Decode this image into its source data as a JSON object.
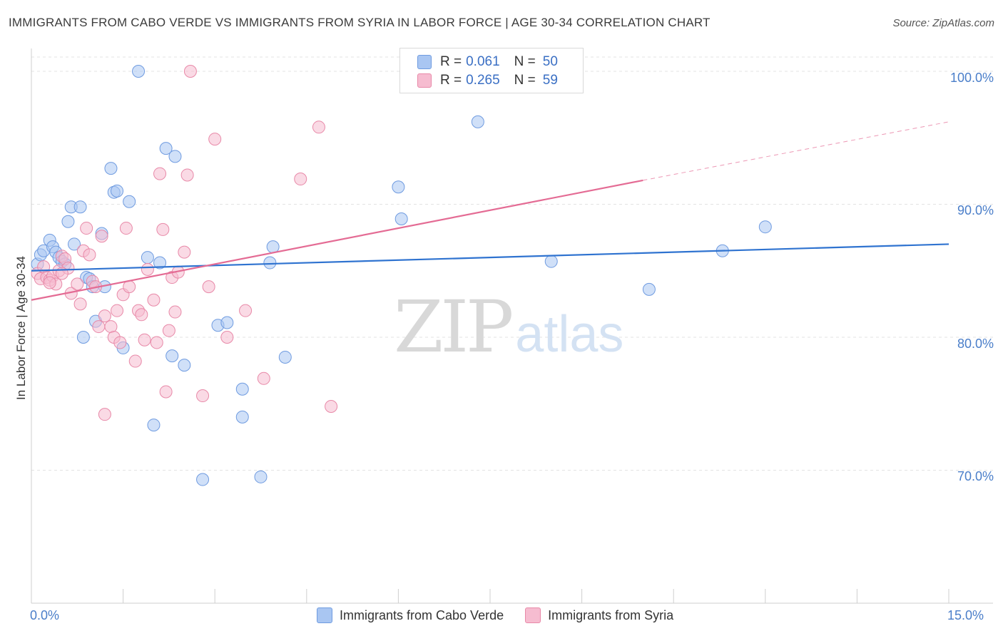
{
  "title": "IMMIGRANTS FROM CABO VERDE VS IMMIGRANTS FROM SYRIA IN LABOR FORCE | AGE 30-34 CORRELATION CHART",
  "source": "Source: ZipAtlas.com",
  "watermark": {
    "part1": "ZIP",
    "part2": "atlas"
  },
  "legend": {
    "rows": [
      {
        "r_label": "R = ",
        "r_value": "0.061",
        "n_label": "N = ",
        "n_value": "50",
        "color": "#a9c6f2",
        "border": "#6f9be0"
      },
      {
        "r_label": "R = ",
        "r_value": "0.265",
        "n_label": "N = ",
        "n_value": "59",
        "color": "#f6bcd0",
        "border": "#e889a8"
      }
    ]
  },
  "bottom_legend": {
    "items": [
      {
        "label": "Immigrants from Cabo Verde",
        "color": "#a9c6f2",
        "border": "#6f9be0"
      },
      {
        "label": "Immigrants from Syria",
        "color": "#f6bcd0",
        "border": "#e889a8"
      }
    ]
  },
  "chart_data": {
    "type": "scatter",
    "title": "IMMIGRANTS FROM CABO VERDE VS IMMIGRANTS FROM SYRIA IN LABOR FORCE | AGE 30-34 CORRELATION CHART",
    "xlabel": "",
    "ylabel": "In Labor Force | Age 30-34",
    "xlim": [
      0,
      15
    ],
    "ylim": [
      60,
      101.5
    ],
    "x_tick_labels": [
      "0.0%",
      "15.0%"
    ],
    "y_ticks": [
      70,
      80,
      90,
      100
    ],
    "y_tick_labels": [
      "70.0%",
      "80.0%",
      "90.0%",
      "100.0%"
    ],
    "grid": true,
    "legend_position": "top-center",
    "series": [
      {
        "name": "Immigrants from Cabo Verde",
        "color": "#6f9be0",
        "fill": "#a9c6f2",
        "trend": {
          "x": [
            0,
            15
          ],
          "y": [
            85.0,
            87.0
          ],
          "color": "#2f73d0"
        },
        "points": [
          [
            0.1,
            85.5
          ],
          [
            0.15,
            86.2
          ],
          [
            0.2,
            86.5
          ],
          [
            0.3,
            87.3
          ],
          [
            0.35,
            86.8
          ],
          [
            0.4,
            86.4
          ],
          [
            0.45,
            86.0
          ],
          [
            0.5,
            85.7
          ],
          [
            0.55,
            85.5
          ],
          [
            0.6,
            88.7
          ],
          [
            0.65,
            89.8
          ],
          [
            0.7,
            87.0
          ],
          [
            0.8,
            89.8
          ],
          [
            0.85,
            80.0
          ],
          [
            0.9,
            84.5
          ],
          [
            0.95,
            84.4
          ],
          [
            1.0,
            83.8
          ],
          [
            1.05,
            81.2
          ],
          [
            1.15,
            87.8
          ],
          [
            1.2,
            83.8
          ],
          [
            1.3,
            92.7
          ],
          [
            1.35,
            90.9
          ],
          [
            1.4,
            91.0
          ],
          [
            1.5,
            79.2
          ],
          [
            1.6,
            90.2
          ],
          [
            1.75,
            100.0
          ],
          [
            1.9,
            86.0
          ],
          [
            2.0,
            73.4
          ],
          [
            2.1,
            85.6
          ],
          [
            2.2,
            94.2
          ],
          [
            2.35,
            93.6
          ],
          [
            2.3,
            78.6
          ],
          [
            2.5,
            77.9
          ],
          [
            2.8,
            69.3
          ],
          [
            3.05,
            80.9
          ],
          [
            3.2,
            81.1
          ],
          [
            3.45,
            76.1
          ],
          [
            3.45,
            74.0
          ],
          [
            3.75,
            69.5
          ],
          [
            3.9,
            85.6
          ],
          [
            3.95,
            86.8
          ],
          [
            4.15,
            78.5
          ],
          [
            6.0,
            91.3
          ],
          [
            6.05,
            88.9
          ],
          [
            7.3,
            96.2
          ],
          [
            8.5,
            85.7
          ],
          [
            10.1,
            83.6
          ],
          [
            11.3,
            86.5
          ],
          [
            12.0,
            88.3
          ],
          [
            6.3,
            100.0
          ]
        ]
      },
      {
        "name": "Immigrants from Syria",
        "color": "#e889a8",
        "fill": "#f6bcd0",
        "trend": {
          "x": [
            0,
            10.0
          ],
          "y": [
            82.8,
            91.8
          ],
          "dash_x": [
            10.0,
            15
          ],
          "dash_y": [
            91.8,
            96.2
          ],
          "color": "#e46b94"
        },
        "points": [
          [
            0.1,
            84.8
          ],
          [
            0.15,
            84.4
          ],
          [
            0.2,
            85.3
          ],
          [
            0.25,
            84.5
          ],
          [
            0.3,
            84.3
          ],
          [
            0.35,
            84.6
          ],
          [
            0.4,
            84.0
          ],
          [
            0.45,
            85.0
          ],
          [
            0.5,
            86.1
          ],
          [
            0.55,
            85.9
          ],
          [
            0.6,
            85.2
          ],
          [
            0.65,
            83.3
          ],
          [
            0.75,
            84.0
          ],
          [
            0.8,
            82.5
          ],
          [
            0.85,
            86.5
          ],
          [
            0.9,
            88.2
          ],
          [
            0.95,
            86.2
          ],
          [
            1.0,
            84.2
          ],
          [
            1.05,
            83.8
          ],
          [
            1.1,
            80.8
          ],
          [
            1.15,
            87.6
          ],
          [
            1.2,
            81.6
          ],
          [
            1.3,
            80.8
          ],
          [
            1.35,
            80.0
          ],
          [
            1.4,
            82.0
          ],
          [
            1.45,
            79.6
          ],
          [
            1.5,
            83.2
          ],
          [
            1.55,
            88.2
          ],
          [
            1.6,
            83.8
          ],
          [
            1.7,
            78.2
          ],
          [
            1.75,
            82.0
          ],
          [
            1.8,
            81.7
          ],
          [
            1.85,
            79.8
          ],
          [
            1.9,
            85.1
          ],
          [
            2.0,
            82.8
          ],
          [
            2.05,
            79.6
          ],
          [
            2.1,
            92.3
          ],
          [
            2.15,
            88.1
          ],
          [
            2.2,
            75.9
          ],
          [
            2.25,
            80.5
          ],
          [
            2.3,
            84.5
          ],
          [
            2.35,
            81.9
          ],
          [
            2.4,
            84.9
          ],
          [
            2.5,
            86.4
          ],
          [
            2.55,
            92.2
          ],
          [
            2.6,
            100.0
          ],
          [
            2.8,
            75.6
          ],
          [
            2.9,
            83.8
          ],
          [
            3.0,
            94.9
          ],
          [
            3.2,
            80.0
          ],
          [
            3.5,
            82.0
          ],
          [
            3.8,
            76.9
          ],
          [
            4.4,
            91.9
          ],
          [
            4.7,
            95.8
          ],
          [
            4.9,
            74.8
          ],
          [
            1.2,
            74.2
          ],
          [
            0.5,
            84.8
          ],
          [
            7.3,
            100.0
          ],
          [
            0.3,
            84.1
          ]
        ]
      }
    ]
  }
}
